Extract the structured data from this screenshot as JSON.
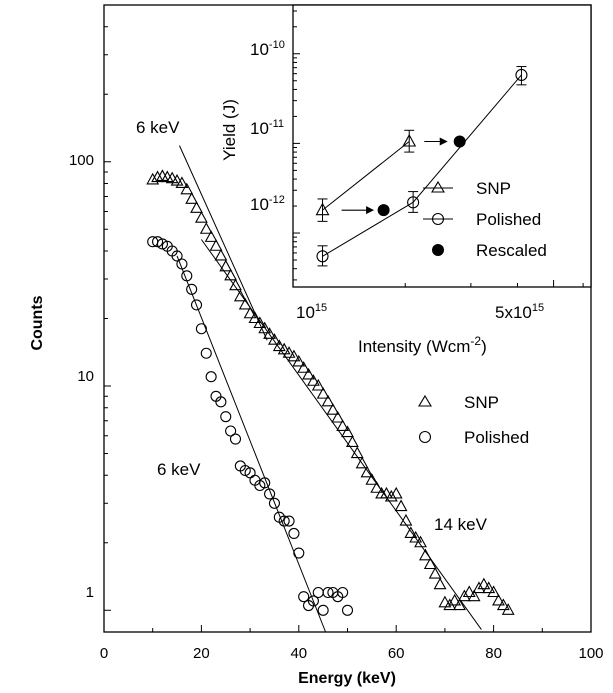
{
  "chart_data": [
    {
      "type": "scatter",
      "xlabel": "Energy (keV)",
      "ylabel": "Counts",
      "xlim": [
        0,
        100
      ],
      "ylim": [
        0.8,
        500
      ],
      "yscale": "log",
      "xticks": [
        0,
        20,
        40,
        60,
        80,
        100
      ],
      "yticks": [
        1,
        10,
        100
      ],
      "yticklabels": [
        "1",
        "10",
        "100"
      ],
      "legend": {
        "placement": "right-middle",
        "entries": [
          "SNP",
          "Polished"
        ]
      },
      "series": [
        {
          "name": "SNP",
          "marker": "open-triangle",
          "x": [
            10,
            11,
            12,
            13,
            14,
            15,
            16,
            17,
            18,
            19,
            20,
            21,
            22,
            23,
            24,
            25,
            26,
            27,
            28,
            29,
            30,
            31,
            32,
            33,
            34,
            35,
            36,
            37,
            38,
            39,
            40,
            41,
            42,
            43,
            44,
            45,
            46,
            47,
            48,
            49,
            50,
            51,
            52,
            53,
            54,
            55,
            56,
            57,
            58,
            59,
            60,
            61,
            62,
            63,
            64,
            65,
            66,
            67,
            68,
            69,
            70,
            71,
            72,
            73,
            74,
            75,
            76,
            77,
            78,
            79,
            80,
            81,
            82,
            83
          ],
          "y": [
            83,
            85,
            86,
            85,
            84,
            82,
            80,
            75,
            68,
            62,
            56,
            50,
            46,
            42,
            38,
            34,
            31,
            28,
            25,
            23,
            21,
            20,
            19,
            18,
            17,
            16,
            15,
            14.5,
            14,
            13.5,
            12.8,
            12,
            11.2,
            10.5,
            10,
            9.2,
            8.5,
            7.8,
            7.2,
            6.6,
            6.2,
            5.6,
            5.0,
            4.5,
            4.1,
            3.8,
            3.5,
            3.3,
            3.3,
            3.2,
            3.3,
            2.9,
            2.5,
            2.2,
            2.1,
            2.0,
            1.75,
            1.6,
            1.45,
            1.3,
            1.08,
            1.05,
            1.1,
            1.05,
            1.15,
            1.2,
            1.15,
            1.25,
            1.3,
            1.25,
            1.2,
            1.1,
            1.05,
            1.0
          ]
        },
        {
          "name": "Polished",
          "marker": "open-circle",
          "x": [
            10,
            11,
            12,
            13,
            14,
            15,
            16,
            17,
            18,
            19,
            20,
            21,
            22,
            23,
            24,
            25,
            26,
            27,
            28,
            29,
            30,
            31,
            32,
            33,
            34,
            35,
            36,
            37,
            38,
            39,
            40,
            41,
            42,
            43,
            44,
            45,
            46,
            47,
            48,
            49,
            50
          ],
          "y": [
            44,
            44,
            43,
            42,
            40,
            38,
            35,
            31,
            27,
            23,
            18,
            14,
            11,
            9,
            8.5,
            7.3,
            6.3,
            5.8,
            4.4,
            4.2,
            4.1,
            3.8,
            3.6,
            3.7,
            3.3,
            3.0,
            2.6,
            2.5,
            2.5,
            2.2,
            1.8,
            1.15,
            1.05,
            1.1,
            1.2,
            1.0,
            1.2,
            1.2,
            1.15,
            1.2,
            1.0
          ]
        }
      ],
      "fit_lines": [
        {
          "series": "SNP",
          "label": "6 keV",
          "x": [
            15.5,
            33.5
          ],
          "y": [
            118,
            16
          ]
        },
        {
          "series": "SNP",
          "label": "14 keV",
          "x": [
            20,
            77.5
          ],
          "y": [
            45,
            0.82
          ]
        },
        {
          "series": "Polished",
          "label": "6 keV",
          "x": [
            15,
            45.5
          ],
          "y": [
            38,
            0.8
          ]
        }
      ],
      "annotations": [
        {
          "text": "6 keV",
          "x": 14,
          "y": 148
        },
        {
          "text": "6 keV",
          "x": 22,
          "y": 5.0
        },
        {
          "text": "14 keV",
          "x": 69,
          "y": 1.8
        }
      ]
    },
    {
      "type": "scatter",
      "xlabel": "Intensity (Wcm⁻²)",
      "ylabel": "Yield (J)",
      "xscale": "log",
      "yscale": "log",
      "xlim": [
        1000000000000000.0,
        6300000000000000.0
      ],
      "ylim": [
        2.5e-13,
        3.5e-10
      ],
      "xticks": [
        1000000000000000.0,
        5000000000000000.0
      ],
      "yticks": [
        1e-12,
        1e-11,
        1e-10
      ],
      "legend": {
        "placement": "right-bottom",
        "entries": [
          "SNP",
          "Polished",
          "Rescaled"
        ]
      },
      "series": [
        {
          "name": "SNP",
          "marker": "open-triangle-line",
          "x": [
            1200000000000000.0,
            2050000000000000.0
          ],
          "y": [
            1.8e-12,
            1.05e-11
          ],
          "yerr_low": [
            1.35e-12,
            8e-12
          ],
          "yerr_high": [
            2.4e-12,
            1.4e-11
          ]
        },
        {
          "name": "Polished",
          "marker": "open-circle-line",
          "x": [
            1200000000000000.0,
            2100000000000000.0,
            4100000000000000.0
          ],
          "y": [
            5.5e-13,
            2.2e-12,
            5.8e-11
          ],
          "yerr_low": [
            4.3e-13,
            1.7e-12,
            4.5e-11
          ],
          "yerr_high": [
            7.2e-13,
            2.9e-12,
            7.2e-11
          ]
        },
        {
          "name": "Rescaled",
          "marker": "filled-circle",
          "x": [
            1750000000000000.0,
            2800000000000000.0
          ],
          "y": [
            1.8e-12,
            1.05e-11
          ]
        }
      ],
      "arrows": [
        {
          "from": [
            1350000000000000.0,
            1.8e-12
          ],
          "to": [
            1650000000000000.0,
            1.8e-12
          ]
        },
        {
          "from": [
            2250000000000000.0,
            1.05e-11
          ],
          "to": [
            2600000000000000.0,
            1.05e-11
          ]
        }
      ]
    }
  ],
  "main": {
    "x_tick_labels": [
      "0",
      "20",
      "40",
      "60",
      "80",
      "100"
    ],
    "y_tick_labels": [
      "1",
      "10",
      "100"
    ],
    "xlabel": "Energy (keV)",
    "ylabel": "Counts",
    "ann_snp_6": "6 keV",
    "ann_pol_6": "6 keV",
    "ann_snp_14": "14 keV",
    "legend_snp": "SNP",
    "legend_polished": "Polished"
  },
  "inset": {
    "ylabel": "Yield (J)",
    "xlabel_main": "Intensity (Wcm",
    "xlabel_sup": "-2",
    "xlabel_close": ")",
    "x_tick_1_base": "10",
    "x_tick_1_exp": "15",
    "x_tick_2_base": "5x10",
    "x_tick_2_exp": "15",
    "y_tick_base": "10",
    "y_tick_exps": [
      "-12",
      "-11",
      "-10"
    ],
    "legend_snp": "SNP",
    "legend_polished": "Polished",
    "legend_rescaled": "Rescaled"
  }
}
